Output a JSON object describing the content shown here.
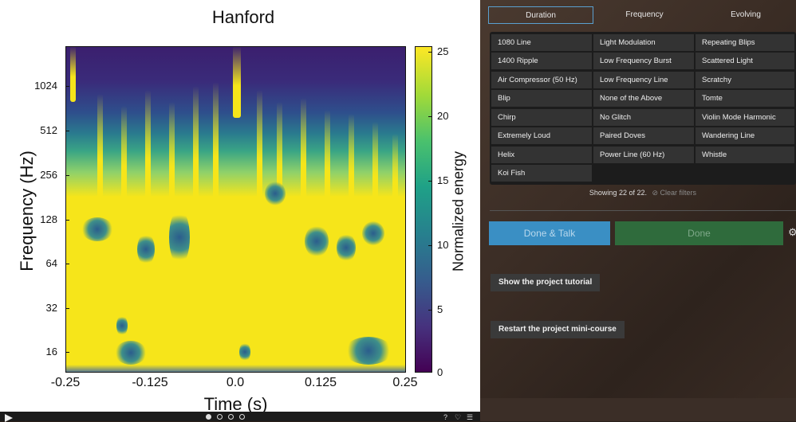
{
  "plot": {
    "title": "Hanford",
    "xlabel": "Time (s)",
    "ylabel": "Frequency (Hz)",
    "colorbar_label": "Normalized energy",
    "yticks": [
      "1024",
      "512",
      "256",
      "128",
      "64",
      "32",
      "16"
    ],
    "xticks": [
      "-0.25",
      "-0.125",
      "0.0",
      "0.125",
      "0.25"
    ],
    "colorbar_ticks": [
      "25",
      "20",
      "15",
      "10",
      "5",
      "0"
    ]
  },
  "filters": {
    "tabs": [
      "Duration",
      "Frequency",
      "Evolving"
    ],
    "active": "Duration"
  },
  "choices": [
    [
      "1080 Line",
      "Light Modulation",
      "Repeating Blips"
    ],
    [
      "1400 Ripple",
      "Low Frequency Burst",
      "Scattered Light"
    ],
    [
      "Air Compressor (50 Hz)",
      "Low Frequency Line",
      "Scratchy"
    ],
    [
      "Blip",
      "None of the Above",
      "Tomte"
    ],
    [
      "Chirp",
      "No Glitch",
      "Violin Mode Harmonic"
    ],
    [
      "Extremely Loud",
      "Paired Doves",
      "Wandering Line"
    ],
    [
      "Helix",
      "Power Line (60 Hz)",
      "Whistle"
    ],
    [
      "Koi Fish"
    ]
  ],
  "status": {
    "showing": "Showing 22 of 22.",
    "clear_filters": "⊘ Clear filters"
  },
  "buttons": {
    "done_talk": "Done & Talk",
    "done": "Done",
    "tutorial": "Show the project tutorial",
    "restart": "Restart the project mini-course"
  },
  "icons": {
    "gear": "gear-icon",
    "play": "play-icon"
  }
}
